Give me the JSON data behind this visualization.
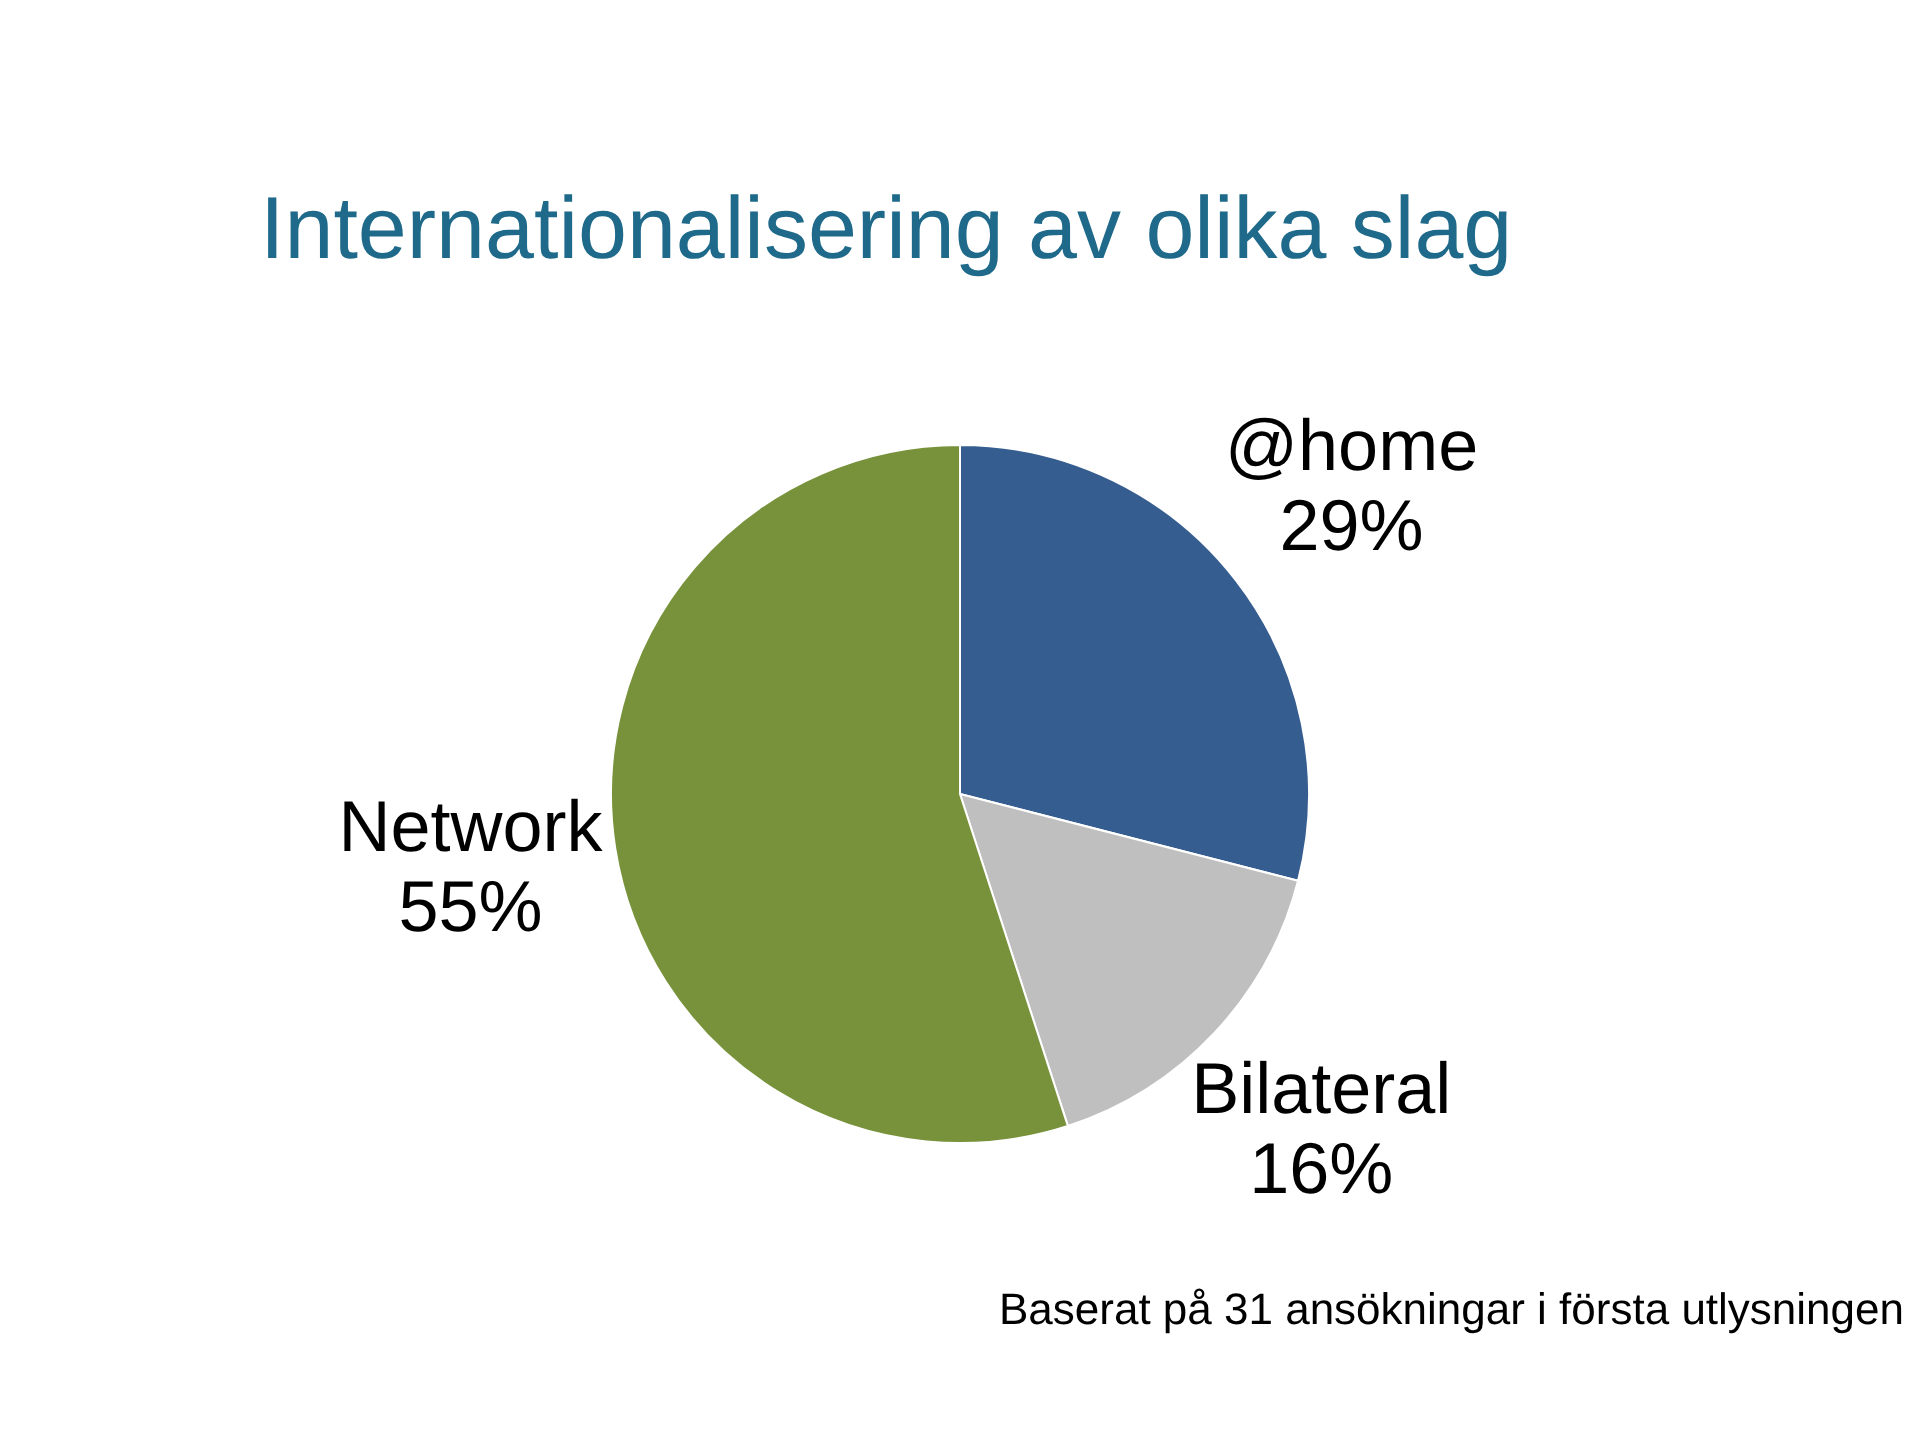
{
  "chart_data": {
    "type": "pie",
    "title": "Internationalisering av olika slag",
    "categories": [
      "@home",
      "Bilateral",
      "Network"
    ],
    "values": [
      29,
      16,
      55
    ],
    "value_labels": [
      "29%",
      "16%",
      "55%"
    ],
    "colors": [
      "#365d8f",
      "#bfbfbf",
      "#77923a"
    ],
    "legend": false,
    "annotations": [
      "Baserat på 31 ansökningar i första utlysningen"
    ]
  }
}
